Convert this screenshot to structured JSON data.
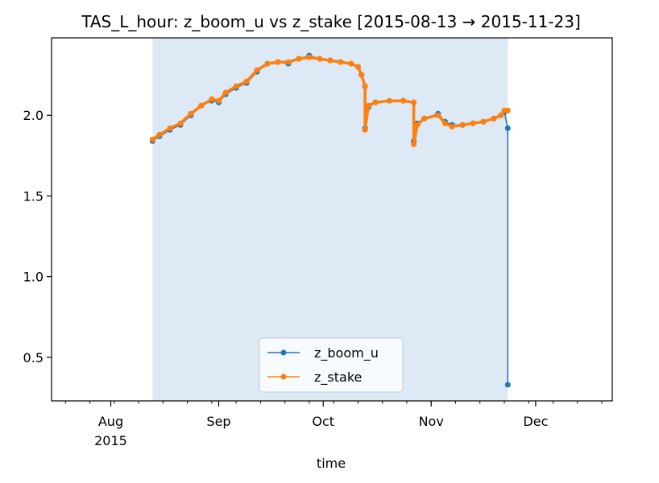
{
  "chart_data": {
    "type": "line",
    "title": "TAS_L_hour: z_boom_u vs z_stake  [2015-08-13 → 2015-11-23]",
    "xlabel": "time",
    "ylabel": "",
    "x_range": [
      "2015-07-15",
      "2015-12-23"
    ],
    "ylim": [
      0.23,
      2.48
    ],
    "y_ticks": [
      0.5,
      1.0,
      1.5,
      2.0
    ],
    "y_tick_labels": [
      "0.5",
      "1.0",
      "1.5",
      "2.0"
    ],
    "x_ticks": [
      {
        "date": "2015-08-01",
        "label": "Aug",
        "sublabel": "2015"
      },
      {
        "date": "2015-09-01",
        "label": "Sep",
        "sublabel": ""
      },
      {
        "date": "2015-10-01",
        "label": "Oct",
        "sublabel": ""
      },
      {
        "date": "2015-11-01",
        "label": "Nov",
        "sublabel": ""
      },
      {
        "date": "2015-12-01",
        "label": "Dec",
        "sublabel": ""
      }
    ],
    "highlight_span": [
      "2015-08-13",
      "2015-11-23"
    ],
    "grid": false,
    "legend_position": "lower-center",
    "series": [
      {
        "name": "z_boom_u",
        "color": "#1f77b4",
        "marker": "circle",
        "points": [
          [
            "2015-08-13",
            1.84
          ],
          [
            "2015-08-15",
            1.87
          ],
          [
            "2015-08-18",
            1.91
          ],
          [
            "2015-08-21",
            1.94
          ],
          [
            "2015-08-24",
            2.0
          ],
          [
            "2015-08-27",
            2.06
          ],
          [
            "2015-08-30",
            2.09
          ],
          [
            "2015-09-01",
            2.08
          ],
          [
            "2015-09-03",
            2.13
          ],
          [
            "2015-09-06",
            2.17
          ],
          [
            "2015-09-09",
            2.2
          ],
          [
            "2015-09-12",
            2.27
          ],
          [
            "2015-09-15",
            2.32
          ],
          [
            "2015-09-18",
            2.33
          ],
          [
            "2015-09-21",
            2.32
          ],
          [
            "2015-09-24",
            2.35
          ],
          [
            "2015-09-27",
            2.37
          ],
          [
            "2015-09-30",
            2.35
          ],
          [
            "2015-10-03",
            2.34
          ],
          [
            "2015-10-06",
            2.33
          ],
          [
            "2015-10-09",
            2.32
          ],
          [
            "2015-10-11",
            2.3
          ],
          [
            "2015-10-12",
            2.25
          ],
          [
            "2015-10-13",
            2.18
          ],
          [
            "2015-10-13",
            1.92
          ],
          [
            "2015-10-14",
            2.05
          ],
          [
            "2015-10-16",
            2.08
          ],
          [
            "2015-10-20",
            2.09
          ],
          [
            "2015-10-24",
            2.09
          ],
          [
            "2015-10-27",
            2.08
          ],
          [
            "2015-10-27",
            1.84
          ],
          [
            "2015-10-28",
            1.95
          ],
          [
            "2015-10-30",
            1.98
          ],
          [
            "2015-11-03",
            2.01
          ],
          [
            "2015-11-05",
            1.96
          ],
          [
            "2015-11-07",
            1.94
          ],
          [
            "2015-11-10",
            1.94
          ],
          [
            "2015-11-13",
            1.95
          ],
          [
            "2015-11-16",
            1.96
          ],
          [
            "2015-11-19",
            1.98
          ],
          [
            "2015-11-21",
            2.0
          ],
          [
            "2015-11-22",
            2.02
          ],
          [
            "2015-11-23",
            1.92
          ],
          [
            "2015-11-23",
            0.33
          ]
        ]
      },
      {
        "name": "z_stake",
        "color": "#ff7f0e",
        "marker": "circle",
        "points": [
          [
            "2015-08-13",
            1.85
          ],
          [
            "2015-08-15",
            1.88
          ],
          [
            "2015-08-18",
            1.92
          ],
          [
            "2015-08-21",
            1.95
          ],
          [
            "2015-08-24",
            2.01
          ],
          [
            "2015-08-27",
            2.06
          ],
          [
            "2015-08-30",
            2.1
          ],
          [
            "2015-09-01",
            2.09
          ],
          [
            "2015-09-03",
            2.14
          ],
          [
            "2015-09-06",
            2.18
          ],
          [
            "2015-09-09",
            2.21
          ],
          [
            "2015-09-12",
            2.28
          ],
          [
            "2015-09-15",
            2.32
          ],
          [
            "2015-09-18",
            2.33
          ],
          [
            "2015-09-21",
            2.33
          ],
          [
            "2015-09-24",
            2.35
          ],
          [
            "2015-09-27",
            2.36
          ],
          [
            "2015-09-30",
            2.35
          ],
          [
            "2015-10-03",
            2.34
          ],
          [
            "2015-10-06",
            2.33
          ],
          [
            "2015-10-09",
            2.32
          ],
          [
            "2015-10-11",
            2.3
          ],
          [
            "2015-10-12",
            2.25
          ],
          [
            "2015-10-13",
            2.18
          ],
          [
            "2015-10-13",
            1.91
          ],
          [
            "2015-10-14",
            2.06
          ],
          [
            "2015-10-16",
            2.08
          ],
          [
            "2015-10-20",
            2.09
          ],
          [
            "2015-10-24",
            2.09
          ],
          [
            "2015-10-27",
            2.08
          ],
          [
            "2015-10-27",
            1.82
          ],
          [
            "2015-10-28",
            1.94
          ],
          [
            "2015-10-30",
            1.98
          ],
          [
            "2015-11-03",
            2.0
          ],
          [
            "2015-11-05",
            1.95
          ],
          [
            "2015-11-07",
            1.93
          ],
          [
            "2015-11-10",
            1.94
          ],
          [
            "2015-11-13",
            1.95
          ],
          [
            "2015-11-16",
            1.96
          ],
          [
            "2015-11-19",
            1.98
          ],
          [
            "2015-11-21",
            2.0
          ],
          [
            "2015-11-22",
            2.03
          ],
          [
            "2015-11-23",
            2.03
          ]
        ]
      }
    ]
  }
}
